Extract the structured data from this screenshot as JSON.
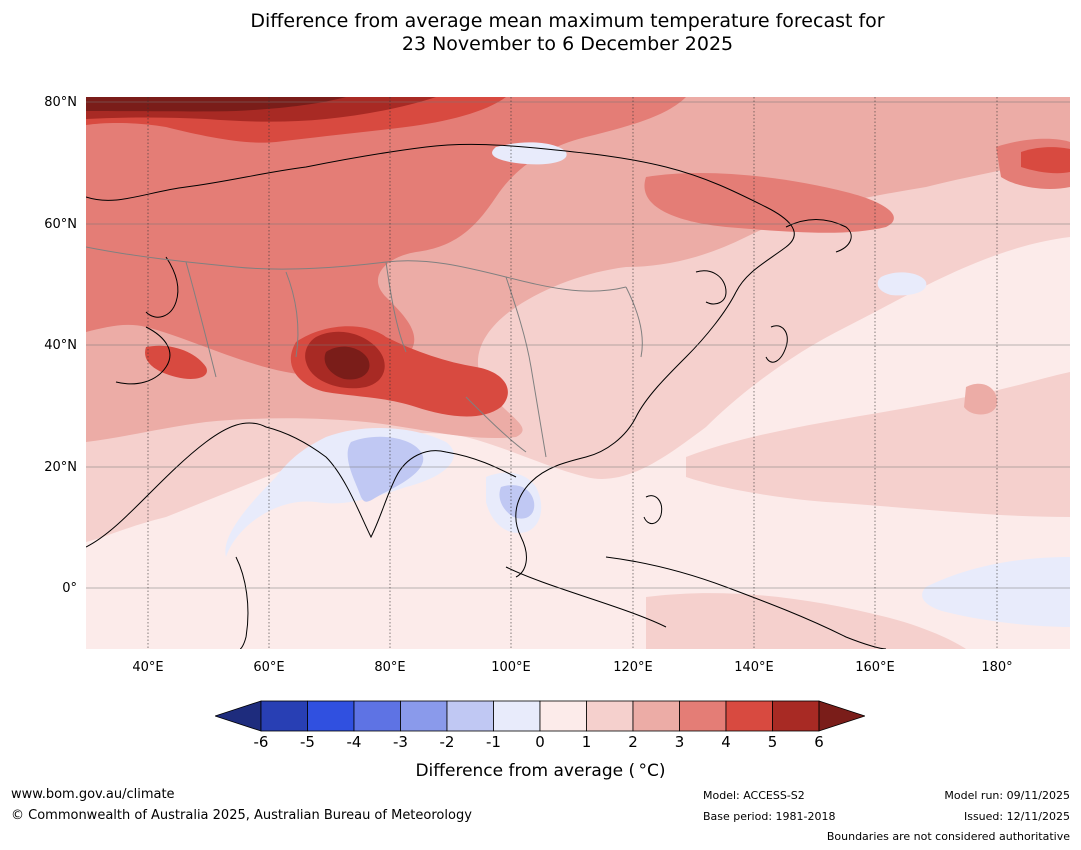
{
  "title": {
    "line1": "Difference from average mean maximum temperature forecast for",
    "line2": "23 November to 6 December 2025"
  },
  "map": {
    "y_axis_labels": [
      "80°N",
      "60°N",
      "40°N",
      "20°N",
      "0°"
    ],
    "x_axis_labels": [
      "40°E",
      "60°E",
      "80°E",
      "100°E",
      "120°E",
      "140°E",
      "160°E",
      "180°"
    ],
    "colors": {
      "ocean_base": "#fcebea",
      "land_outline": "#000000",
      "border": "#808080",
      "gridline": "#777777"
    }
  },
  "colorbar": {
    "ticks": [
      "-6",
      "-5",
      "-4",
      "-3",
      "-2",
      "-1",
      "0",
      "1",
      "2",
      "3",
      "4",
      "5",
      "6"
    ],
    "colors": [
      "#1e2c7d",
      "#283fb4",
      "#3050e0",
      "#5e73e4",
      "#8a9aeb",
      "#c0c8f3",
      "#e8ebfb",
      "#fcebea",
      "#f5d0cd",
      "#ecaca6",
      "#e47d76",
      "#d84a40",
      "#a82a24",
      "#7a1d19"
    ],
    "label": "Difference from average ( °C)"
  },
  "footer": {
    "website": "www.bom.gov.au/climate",
    "copyright": "© Commonwealth of Australia 2025, Australian Bureau of Meteorology",
    "model": "Model: ACCESS-S2",
    "base_period": "Base period: 1981-2018",
    "model_run": "Model run: 09/11/2025",
    "issued": "Issued: 12/11/2025",
    "disclaimer": "Boundaries are not considered authoritative"
  }
}
